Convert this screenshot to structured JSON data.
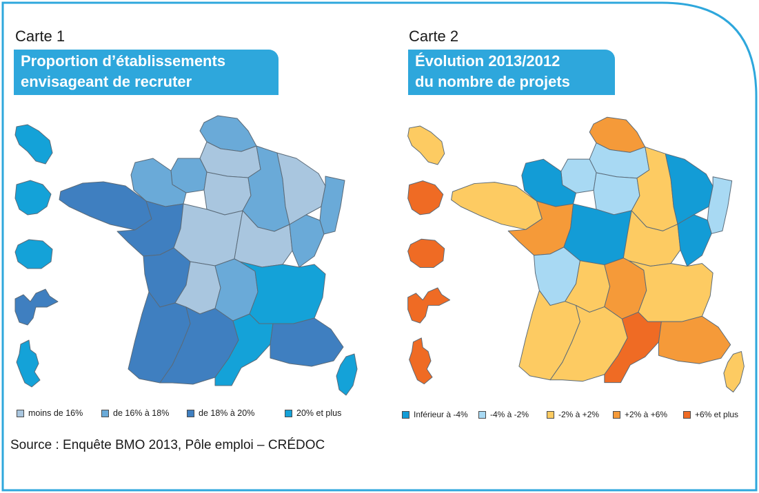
{
  "map1": {
    "label": "Carte 1",
    "title_line1": "Proportion d’établissements",
    "title_line2": "envisageant de recruter",
    "legend": [
      {
        "label": "moins de 16%",
        "color": "#a9c6df"
      },
      {
        "label": "de 16% à 18%",
        "color": "#6aaad8"
      },
      {
        "label": "de 18% à 20%",
        "color": "#3f7fc0"
      },
      {
        "label": "20% et plus",
        "color": "#14a2d8"
      }
    ],
    "region_classes": {
      "nord": 1,
      "picardie": 0,
      "haute-normandie": 1,
      "basse-normandie": 1,
      "ile-de-france": 0,
      "champagne": 1,
      "lorraine": 0,
      "alsace": 1,
      "bretagne": 2,
      "pays-de-la-loire": 2,
      "centre": 0,
      "bourgogne": 0,
      "franche-comte": 1,
      "poitou-charentes": 2,
      "limousin": 0,
      "auvergne": 1,
      "rhone-alpes": 3,
      "aquitaine": 2,
      "midi-pyrenees": 2,
      "languedoc": 3,
      "paca": 2,
      "corse": 3,
      "martinique": 3,
      "guadeloupe": 2,
      "guyane": 3,
      "reunion": 3,
      "mayotte": 3
    }
  },
  "map2": {
    "label": "Carte 2",
    "title_line1": "Évolution 2013/2012",
    "title_line2": "du nombre de projets",
    "legend": [
      {
        "label": "Inférieur à -4%",
        "color": "#139cd6"
      },
      {
        "label": "-4% à -2%",
        "color": "#a8d9f3"
      },
      {
        "label": "-2% à +2%",
        "color": "#fdcb62"
      },
      {
        "label": "+2% à +6%",
        "color": "#f59a39"
      },
      {
        "label": "+6% et plus",
        "color": "#ef6b24"
      }
    ],
    "region_classes": {
      "nord": 3,
      "picardie": 1,
      "haute-normandie": 1,
      "basse-normandie": 0,
      "ile-de-france": 1,
      "champagne": 2,
      "lorraine": 0,
      "alsace": 1,
      "bretagne": 2,
      "pays-de-la-loire": 3,
      "centre": 0,
      "bourgogne": 2,
      "franche-comte": 0,
      "poitou-charentes": 1,
      "limousin": 2,
      "auvergne": 3,
      "rhone-alpes": 2,
      "aquitaine": 2,
      "midi-pyrenees": 2,
      "languedoc": 4,
      "paca": 3,
      "corse": 2,
      "martinique": 2,
      "guadeloupe": 4,
      "guyane": 4,
      "reunion": 4,
      "mayotte": 4
    }
  },
  "source": "Source : Enquête BMO 2013, Pôle emploi – CRÉDOC",
  "colors": {
    "frame": "#2ea7dc",
    "banner": "#2ea7dc"
  }
}
